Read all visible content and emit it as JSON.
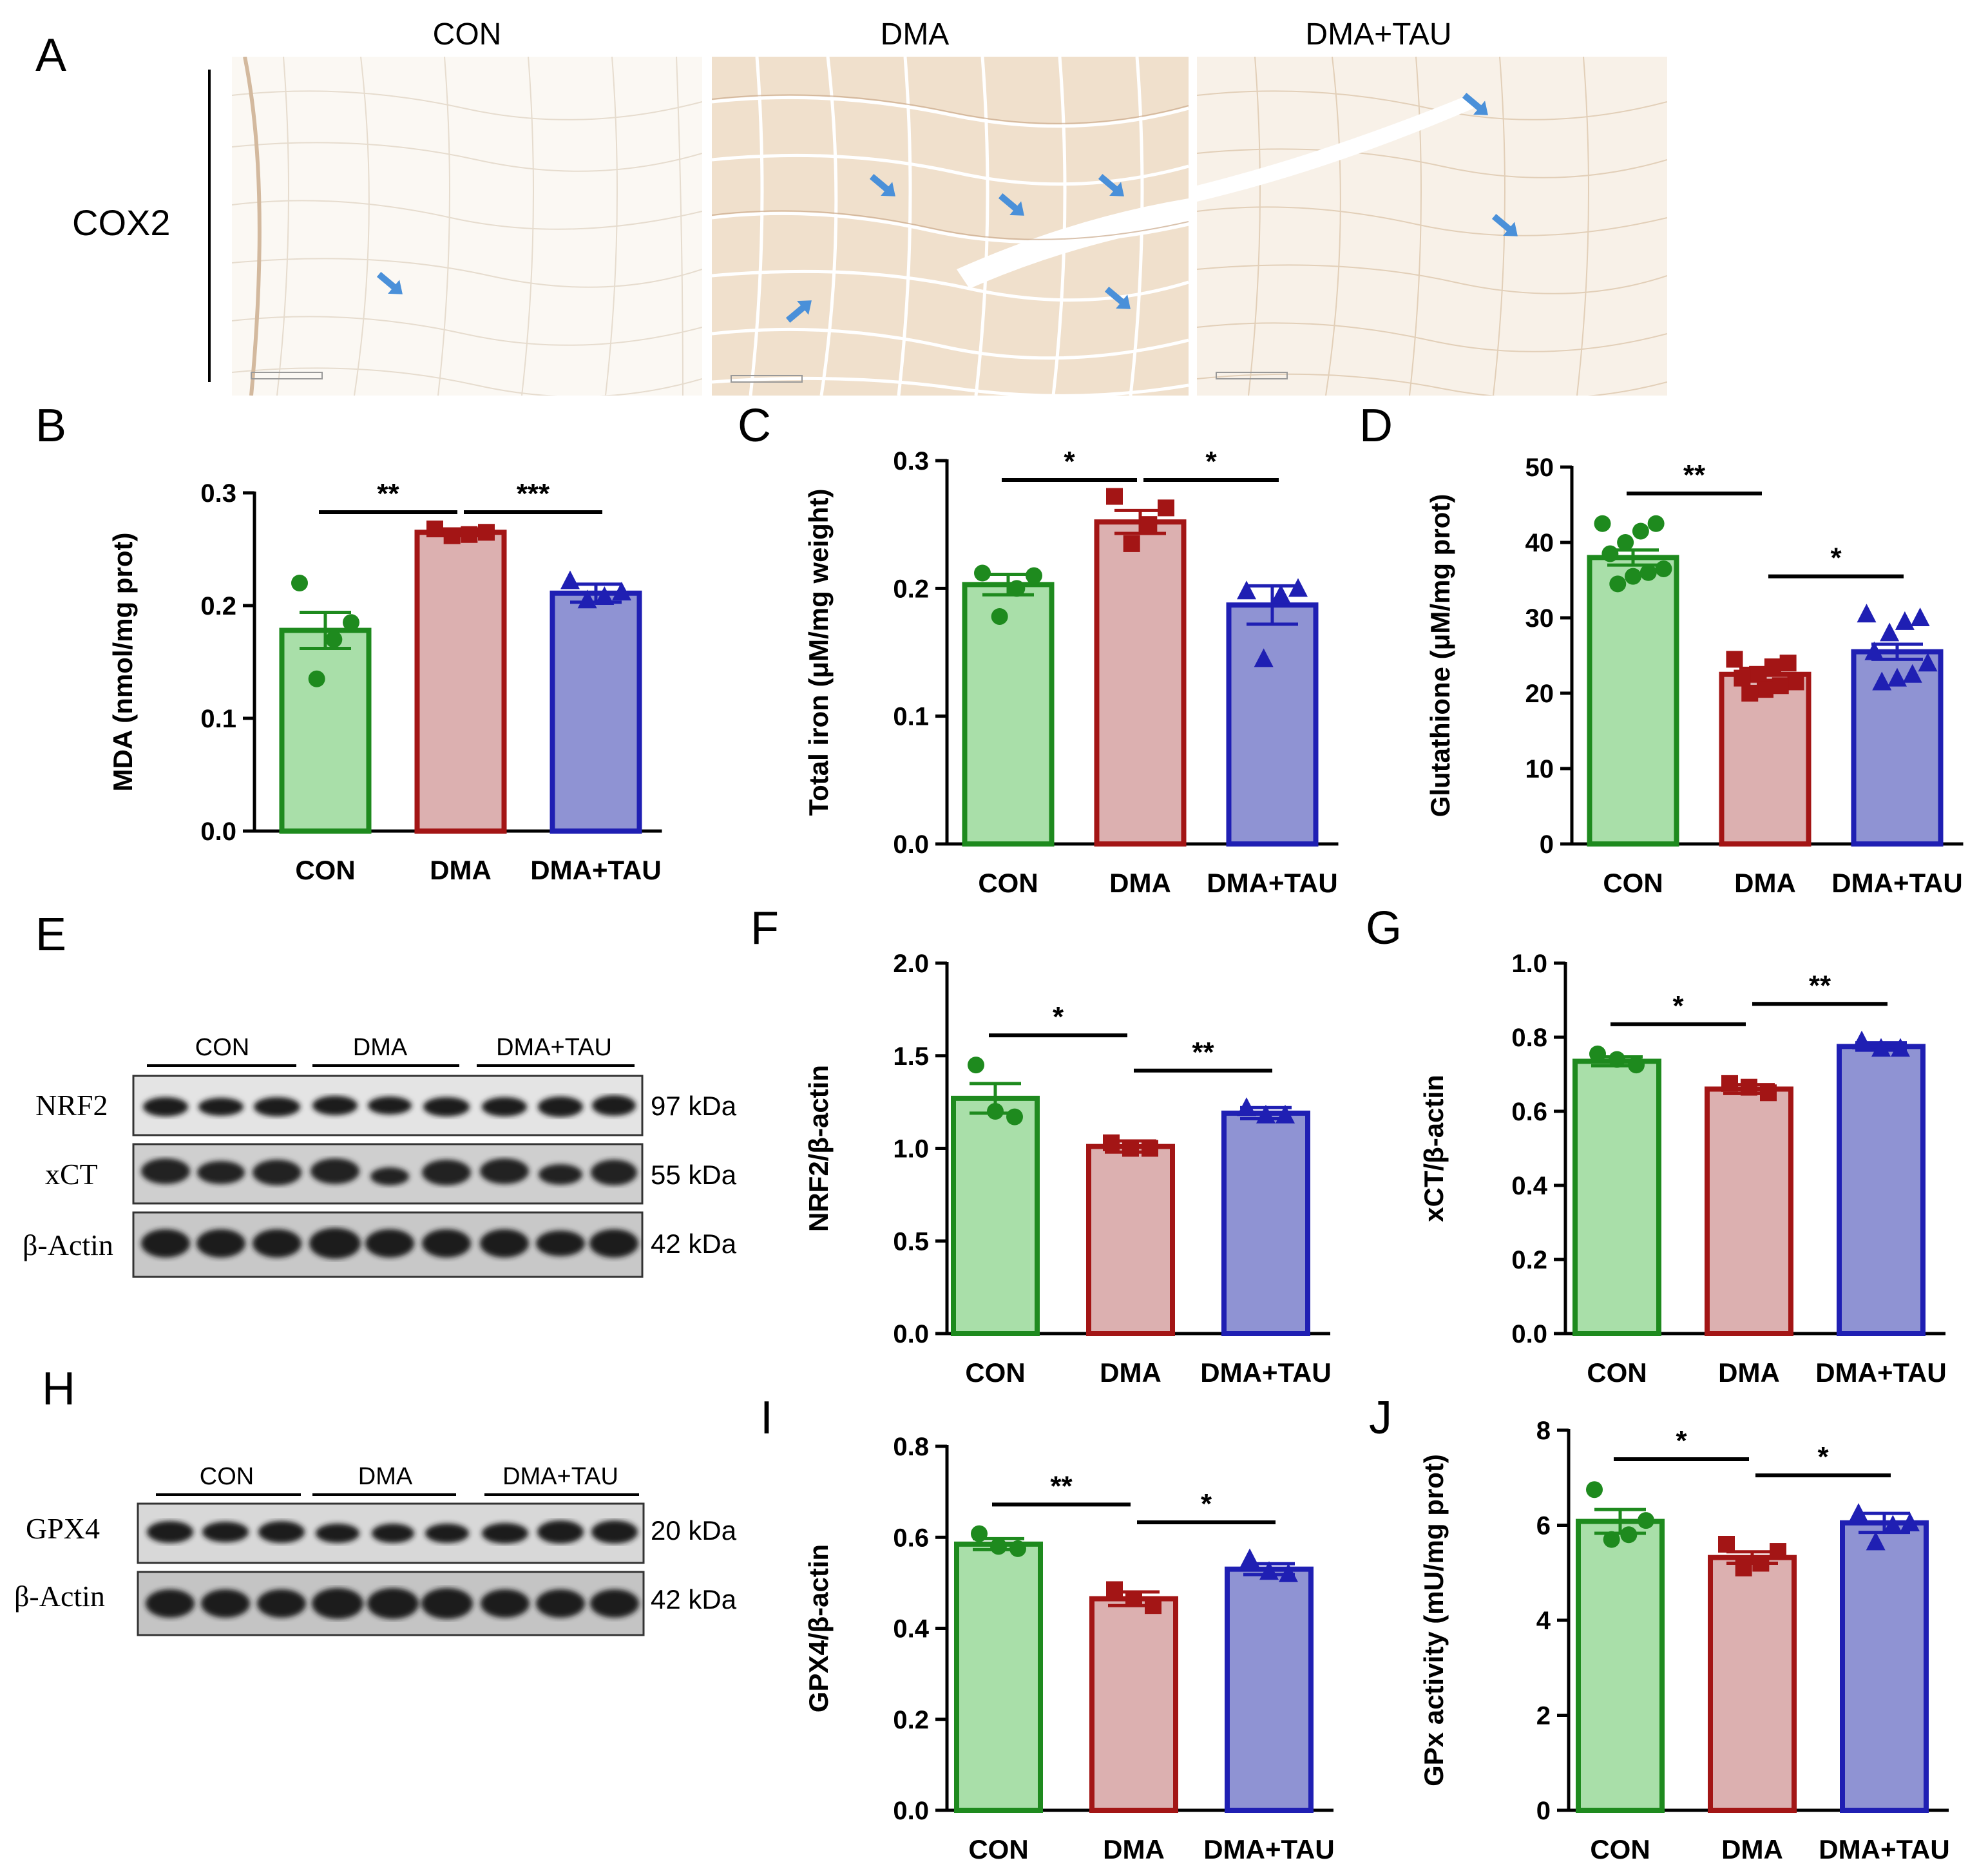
{
  "panel_letters": {
    "A": "A",
    "B": "B",
    "C": "C",
    "D": "D",
    "E": "E",
    "F": "F",
    "G": "G",
    "H": "H",
    "I": "I",
    "J": "J"
  },
  "panel_a": {
    "row_label": "COX2",
    "columns": [
      "CON",
      "DMA",
      "DMA+TAU"
    ]
  },
  "colors": {
    "con_fill": "#a9dfa9",
    "con_stroke": "#1e8a1e",
    "con_dot": "#1e8a1e",
    "dma_fill": "#dcb0b0",
    "dma_stroke": "#a31515",
    "dma_dot": "#a31515",
    "tau_fill": "#8f93d3",
    "tau_stroke": "#1f1fb3",
    "tau_dot": "#1f1fb3",
    "arrow": "#4a90d9",
    "tissue_con": "#fbf8f3",
    "tissue_dma": "#f0e0cc",
    "tissue_tau": "#f8f1e8"
  },
  "blot_e": {
    "groups": [
      "CON",
      "DMA",
      "DMA+TAU"
    ],
    "rows": [
      {
        "label": "NRF2",
        "kda": "97 kDa"
      },
      {
        "label": "xCT",
        "kda": "55 kDa"
      },
      {
        "label": "β-Actin",
        "kda": "42 kDa"
      }
    ]
  },
  "blot_h": {
    "groups": [
      "CON",
      "DMA",
      "DMA+TAU"
    ],
    "rows": [
      {
        "label": "GPX4",
        "kda": "20 kDa"
      },
      {
        "label": "β-Actin",
        "kda": "42 kDa"
      }
    ]
  },
  "chart_data": [
    {
      "id": "B",
      "type": "bar",
      "categories": [
        "CON",
        "DMA",
        "DMA+TAU"
      ],
      "ylabel": "MDA (nmol/mg prot)",
      "ylim": [
        0,
        0.3
      ],
      "ticks": [
        "0.0",
        "0.1",
        "0.2",
        "0.3"
      ],
      "values": [
        0.178,
        0.265,
        0.211
      ],
      "sem": [
        0.016,
        0.003,
        0.008
      ],
      "points": [
        [
          0.22,
          0.185,
          0.17,
          0.135
        ],
        [
          0.268,
          0.265,
          0.263,
          0.262
        ],
        [
          0.222,
          0.212,
          0.208,
          0.205
        ]
      ],
      "markers": [
        "circle",
        "square",
        "triangle"
      ],
      "sig": [
        {
          "from": 0,
          "to": 1,
          "label": "**"
        },
        {
          "from": 1,
          "to": 2,
          "label": "***"
        }
      ]
    },
    {
      "id": "C",
      "type": "bar",
      "categories": [
        "CON",
        "DMA",
        "DMA+TAU"
      ],
      "ylabel": "Total iron (μM/mg weight)",
      "ylim": [
        0,
        0.3
      ],
      "ticks": [
        "0.0",
        "0.1",
        "0.2",
        "0.3"
      ],
      "values": [
        0.203,
        0.252,
        0.187
      ],
      "sem": [
        0.008,
        0.009,
        0.015
      ],
      "points": [
        [
          0.212,
          0.21,
          0.2,
          0.178
        ],
        [
          0.272,
          0.263,
          0.25,
          0.235
        ],
        [
          0.198,
          0.2,
          0.195,
          0.145
        ]
      ],
      "markers": [
        "circle",
        "square",
        "triangle"
      ],
      "sig": [
        {
          "from": 0,
          "to": 1,
          "label": "*"
        },
        {
          "from": 1,
          "to": 2,
          "label": "*"
        }
      ]
    },
    {
      "id": "D",
      "type": "bar",
      "categories": [
        "CON",
        "DMA",
        "DMA+TAU"
      ],
      "ylabel": "Glutathione (μM/mg prot)",
      "ylim": [
        0,
        50
      ],
      "ticks": [
        "0",
        "10",
        "20",
        "30",
        "40",
        "50"
      ],
      "values": [
        38,
        22.5,
        25.5
      ],
      "sem": [
        1.0,
        0.8,
        1.0
      ],
      "points": [
        [
          42.5,
          42.5,
          41.5,
          40.0,
          38.5,
          36.5,
          36.0,
          35.5,
          34.5
        ],
        [
          24.5,
          24.0,
          23.5,
          22.5,
          22.0,
          21.5,
          21.0,
          20.5,
          20.0
        ],
        [
          30.5,
          30.0,
          29.5,
          28.0,
          25.5,
          24.0,
          22.5,
          22.0,
          21.5
        ]
      ],
      "markers": [
        "circle",
        "square",
        "triangle"
      ],
      "sig": [
        {
          "from": 0,
          "to": 1,
          "label": "**"
        },
        {
          "from": 1,
          "to": 2,
          "label": "*"
        }
      ]
    },
    {
      "id": "F",
      "type": "bar",
      "categories": [
        "CON",
        "DMA",
        "DMA+TAU"
      ],
      "ylabel": "NRF2/β-actin",
      "ylim": [
        0,
        2.0
      ],
      "ticks": [
        "0.0",
        "0.5",
        "1.0",
        "1.5",
        "2.0"
      ],
      "values": [
        1.27,
        1.01,
        1.19
      ],
      "sem": [
        0.08,
        0.03,
        0.03
      ],
      "points": [
        [
          1.45,
          1.2,
          1.17
        ],
        [
          1.03,
          1.0,
          1.0
        ],
        [
          1.22,
          1.18,
          1.18
        ]
      ],
      "markers": [
        "circle",
        "square",
        "triangle"
      ],
      "sig": [
        {
          "from": 0,
          "to": 1,
          "label": "*"
        },
        {
          "from": 1,
          "to": 2,
          "label": "**"
        }
      ]
    },
    {
      "id": "G",
      "type": "bar",
      "categories": [
        "CON",
        "DMA",
        "DMA+TAU"
      ],
      "ylabel": "xCT/β-actin",
      "ylim": [
        0,
        1.0
      ],
      "ticks": [
        "0.0",
        "0.2",
        "0.4",
        "0.6",
        "0.8",
        "1.0"
      ],
      "values": [
        0.735,
        0.66,
        0.775
      ],
      "sem": [
        0.012,
        0.012,
        0.01
      ],
      "points": [
        [
          0.755,
          0.74,
          0.725
        ],
        [
          0.675,
          0.665,
          0.65
        ],
        [
          0.79,
          0.77,
          0.77
        ]
      ],
      "markers": [
        "circle",
        "square",
        "triangle"
      ],
      "sig": [
        {
          "from": 0,
          "to": 1,
          "label": "*"
        },
        {
          "from": 1,
          "to": 2,
          "label": "**"
        }
      ]
    },
    {
      "id": "I",
      "type": "bar",
      "categories": [
        "CON",
        "DMA",
        "DMA+TAU"
      ],
      "ylabel": "GPX4/β-actin",
      "ylim": [
        0,
        0.8
      ],
      "ticks": [
        "0.0",
        "0.2",
        "0.4",
        "0.6",
        "0.8"
      ],
      "values": [
        0.585,
        0.465,
        0.53
      ],
      "sem": [
        0.012,
        0.015,
        0.012
      ],
      "points": [
        [
          0.608,
          0.58,
          0.575
        ],
        [
          0.485,
          0.465,
          0.45
        ],
        [
          0.553,
          0.525,
          0.52
        ]
      ],
      "markers": [
        "circle",
        "square",
        "triangle"
      ],
      "sig": [
        {
          "from": 0,
          "to": 1,
          "label": "**"
        },
        {
          "from": 1,
          "to": 2,
          "label": "*"
        }
      ]
    },
    {
      "id": "J",
      "type": "bar",
      "categories": [
        "CON",
        "DMA",
        "DMA+TAU"
      ],
      "ylabel": "GPx activity (mU/mg prot)",
      "ylim": [
        0,
        8
      ],
      "ticks": [
        "0",
        "2",
        "4",
        "6",
        "8"
      ],
      "values": [
        6.08,
        5.32,
        6.05
      ],
      "sem": [
        0.25,
        0.12,
        0.2
      ],
      "points": [
        [
          6.75,
          6.1,
          5.8,
          5.7
        ],
        [
          5.6,
          5.45,
          5.2,
          5.1
        ],
        [
          6.25,
          6.05,
          6.0,
          5.65
        ]
      ],
      "markers": [
        "circle",
        "square",
        "triangle"
      ],
      "sig": [
        {
          "from": 0,
          "to": 1,
          "label": "*"
        },
        {
          "from": 1,
          "to": 2,
          "label": "*"
        }
      ]
    }
  ]
}
